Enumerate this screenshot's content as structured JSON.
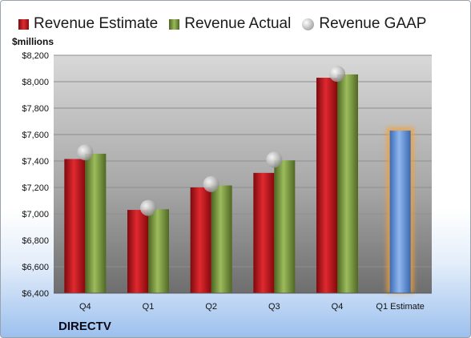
{
  "chart_data": {
    "type": "bar",
    "ylabel": "$millions",
    "company": "DIRECTV",
    "categories": [
      "Q4",
      "Q1",
      "Q2",
      "Q3",
      "Q4",
      "Q1 Estimate"
    ],
    "ylim": [
      6400,
      8200
    ],
    "yticks": [
      "$6,400",
      "$6,600",
      "$6,800",
      "$7,000",
      "$7,200",
      "$7,400",
      "$7,600",
      "$7,800",
      "$8,000",
      "$8,200"
    ],
    "grid": true,
    "legend_position": "top",
    "series": [
      {
        "name": "Revenue Estimate",
        "kind": "bar",
        "color": "#c8161d",
        "values": [
          7415,
          7030,
          7200,
          7310,
          8030,
          null
        ]
      },
      {
        "name": "Revenue Actual",
        "kind": "bar",
        "color": "#7a9a3c",
        "values": [
          7455,
          7035,
          7215,
          7405,
          8055,
          null
        ]
      },
      {
        "name": "Revenue GAAP",
        "kind": "marker",
        "color": "#c0c0c0",
        "values": [
          7465,
          7045,
          7225,
          7410,
          8060,
          null
        ]
      },
      {
        "name": "",
        "kind": "bar",
        "color": "#5b8ed6",
        "highlight": "#f5a030",
        "values": [
          null,
          null,
          null,
          null,
          null,
          7630
        ]
      }
    ]
  }
}
